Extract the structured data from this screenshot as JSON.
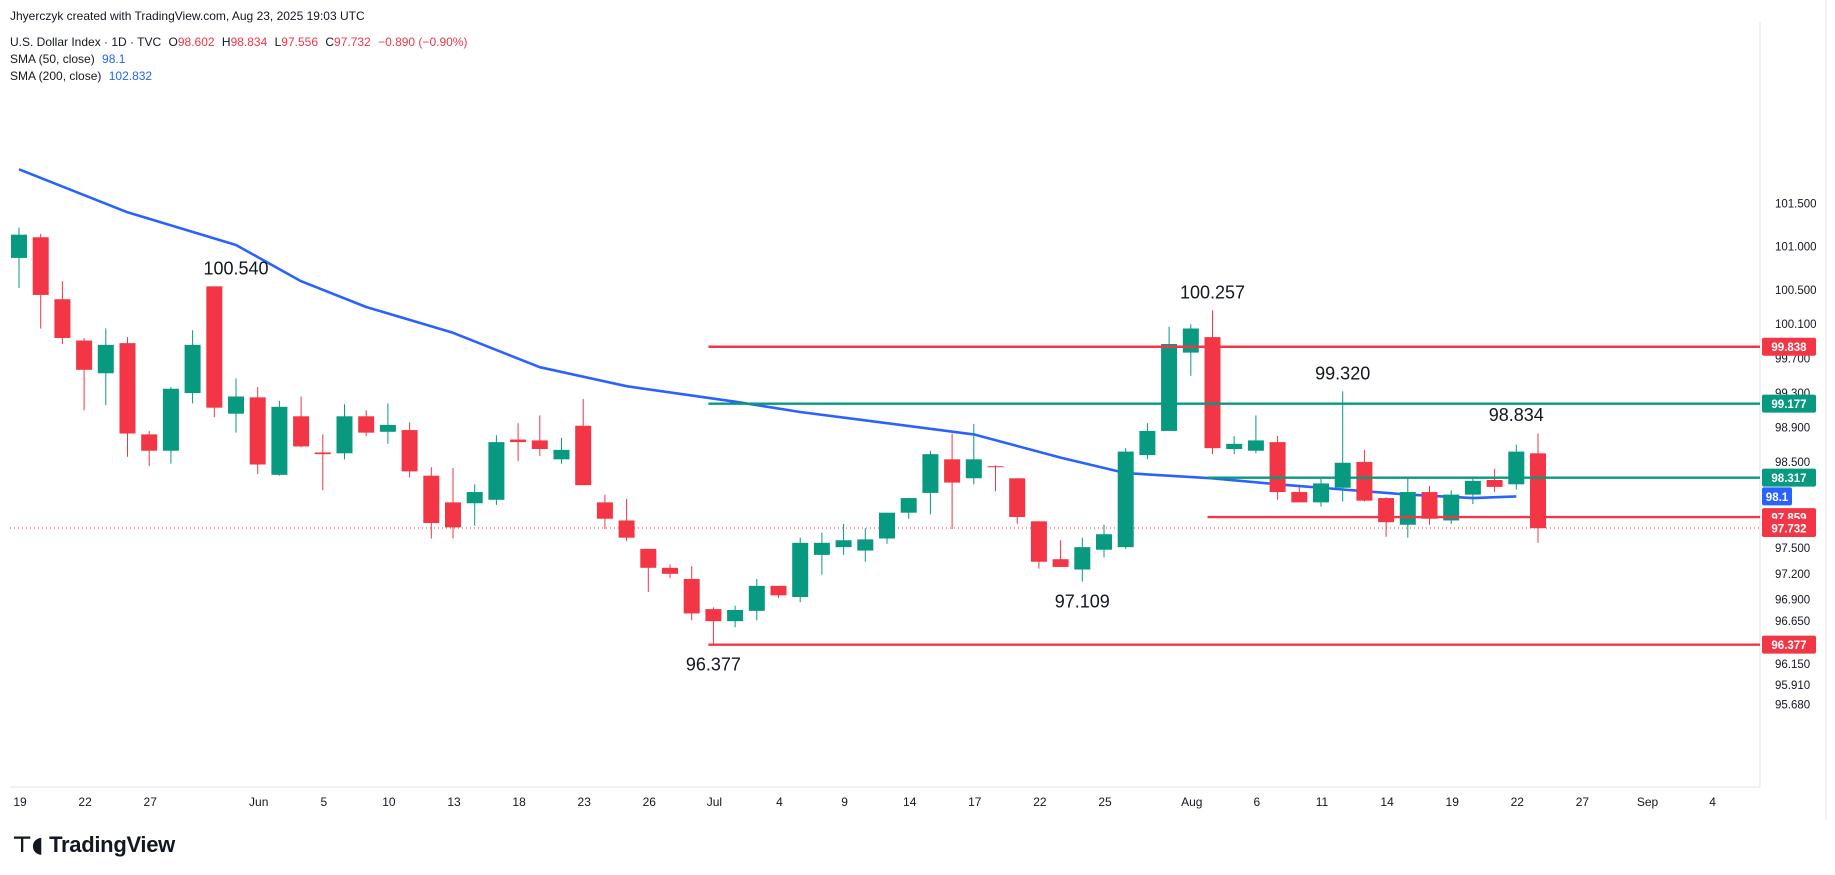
{
  "creator_line": "Jhyerczyk created with TradingView.com, Aug 23, 2025 19:03 UTC",
  "legend": {
    "symbol": "U.S. Dollar Index · 1D · TVC",
    "open_label": "O",
    "open": "98.602",
    "high_label": "H",
    "high": "98.834",
    "low_label": "L",
    "low": "97.556",
    "close_label": "C",
    "close": "97.732",
    "change": "−0.890 (−0.90%)",
    "sma50_label": "SMA (50, close)",
    "sma50_value": "98.1",
    "sma200_label": "SMA (200, close)",
    "sma200_value": "102.832"
  },
  "brand": {
    "name": "TradingView",
    "logo_icon": "tradingview-logo-icon"
  },
  "colors": {
    "up": "#089981",
    "down": "#f23645",
    "sma": "#2962ff",
    "green_level": "#089981",
    "red_level": "#f23645"
  },
  "chart_data": {
    "type": "candlestick",
    "title": "U.S. Dollar Index · 1D · TVC",
    "y_axis": {
      "side": "right",
      "ticks": [
        "101.500",
        "101.000",
        "100.500",
        "100.100",
        "99.700",
        "99.300",
        "98.900",
        "98.500",
        "97.500",
        "97.200",
        "96.900",
        "96.650",
        "96.150",
        "95.910",
        "95.680"
      ]
    },
    "x_axis": {
      "ticks": [
        {
          "i": 0,
          "label": "19"
        },
        {
          "i": 3,
          "label": "22"
        },
        {
          "i": 6,
          "label": "27"
        },
        {
          "i": 11,
          "label": "Jun"
        },
        {
          "i": 14,
          "label": "5"
        },
        {
          "i": 17,
          "label": "10"
        },
        {
          "i": 20,
          "label": "13"
        },
        {
          "i": 23,
          "label": "18"
        },
        {
          "i": 26,
          "label": "23"
        },
        {
          "i": 29,
          "label": "26"
        },
        {
          "i": 32,
          "label": "Jul"
        },
        {
          "i": 35,
          "label": "4"
        },
        {
          "i": 38,
          "label": "9"
        },
        {
          "i": 41,
          "label": "14"
        },
        {
          "i": 44,
          "label": "17"
        },
        {
          "i": 47,
          "label": "22"
        },
        {
          "i": 50,
          "label": "25"
        },
        {
          "i": 54,
          "label": "Aug"
        },
        {
          "i": 57,
          "label": "6"
        },
        {
          "i": 60,
          "label": "11"
        },
        {
          "i": 63,
          "label": "14"
        },
        {
          "i": 66,
          "label": "19"
        },
        {
          "i": 69,
          "label": "22"
        },
        {
          "i": 72,
          "label": "27"
        },
        {
          "i": 75,
          "label": "Sep"
        },
        {
          "i": 78,
          "label": "4"
        }
      ]
    },
    "candles": [
      {
        "o": 100.87,
        "h": 101.22,
        "l": 100.52,
        "c": 101.14
      },
      {
        "o": 101.11,
        "h": 101.15,
        "l": 100.05,
        "c": 100.44
      },
      {
        "o": 100.39,
        "h": 100.6,
        "l": 99.87,
        "c": 99.94
      },
      {
        "o": 99.91,
        "h": 99.94,
        "l": 99.1,
        "c": 99.57
      },
      {
        "o": 99.53,
        "h": 100.05,
        "l": 99.16,
        "c": 99.86
      },
      {
        "o": 99.88,
        "h": 99.95,
        "l": 98.56,
        "c": 98.83
      },
      {
        "o": 98.82,
        "h": 98.86,
        "l": 98.45,
        "c": 98.63
      },
      {
        "o": 98.63,
        "h": 99.37,
        "l": 98.48,
        "c": 99.35
      },
      {
        "o": 99.3,
        "h": 100.03,
        "l": 99.18,
        "c": 99.86
      },
      {
        "o": 100.54,
        "h": 100.54,
        "l": 99.02,
        "c": 99.13
      },
      {
        "o": 99.06,
        "h": 99.47,
        "l": 98.84,
        "c": 99.26
      },
      {
        "o": 99.25,
        "h": 99.37,
        "l": 98.36,
        "c": 98.47
      },
      {
        "o": 98.35,
        "h": 99.21,
        "l": 98.34,
        "c": 99.14
      },
      {
        "o": 99.03,
        "h": 99.26,
        "l": 98.67,
        "c": 98.68
      },
      {
        "o": 98.61,
        "h": 98.82,
        "l": 98.17,
        "c": 98.59
      },
      {
        "o": 98.6,
        "h": 99.17,
        "l": 98.53,
        "c": 99.03
      },
      {
        "o": 99.03,
        "h": 99.1,
        "l": 98.8,
        "c": 98.84
      },
      {
        "o": 98.85,
        "h": 99.18,
        "l": 98.71,
        "c": 98.93
      },
      {
        "o": 98.87,
        "h": 98.96,
        "l": 98.32,
        "c": 98.39
      },
      {
        "o": 98.34,
        "h": 98.44,
        "l": 97.61,
        "c": 97.79
      },
      {
        "o": 98.03,
        "h": 98.43,
        "l": 97.61,
        "c": 97.74
      },
      {
        "o": 98.02,
        "h": 98.24,
        "l": 97.76,
        "c": 98.15
      },
      {
        "o": 98.06,
        "h": 98.81,
        "l": 98.0,
        "c": 98.73
      },
      {
        "o": 98.76,
        "h": 98.95,
        "l": 98.51,
        "c": 98.73
      },
      {
        "o": 98.75,
        "h": 99.04,
        "l": 98.57,
        "c": 98.65
      },
      {
        "o": 98.53,
        "h": 98.78,
        "l": 98.48,
        "c": 98.64
      },
      {
        "o": 98.92,
        "h": 99.23,
        "l": 98.23,
        "c": 98.23
      },
      {
        "o": 98.03,
        "h": 98.12,
        "l": 97.72,
        "c": 97.84
      },
      {
        "o": 97.82,
        "h": 98.07,
        "l": 97.58,
        "c": 97.62
      },
      {
        "o": 97.49,
        "h": 97.49,
        "l": 96.99,
        "c": 97.27
      },
      {
        "o": 97.27,
        "h": 97.31,
        "l": 97.15,
        "c": 97.2
      },
      {
        "o": 97.14,
        "h": 97.29,
        "l": 96.66,
        "c": 96.74
      },
      {
        "o": 96.79,
        "h": 96.81,
        "l": 96.38,
        "c": 96.65
      },
      {
        "o": 96.65,
        "h": 96.83,
        "l": 96.58,
        "c": 96.78
      },
      {
        "o": 96.77,
        "h": 97.14,
        "l": 96.66,
        "c": 97.06
      },
      {
        "o": 97.06,
        "h": 97.06,
        "l": 96.92,
        "c": 96.95
      },
      {
        "o": 96.93,
        "h": 97.62,
        "l": 96.87,
        "c": 97.56
      },
      {
        "o": 97.42,
        "h": 97.68,
        "l": 97.19,
        "c": 97.56
      },
      {
        "o": 97.51,
        "h": 97.78,
        "l": 97.42,
        "c": 97.59
      },
      {
        "o": 97.47,
        "h": 97.73,
        "l": 97.34,
        "c": 97.6
      },
      {
        "o": 97.61,
        "h": 97.91,
        "l": 97.55,
        "c": 97.91
      },
      {
        "o": 97.91,
        "h": 98.08,
        "l": 97.84,
        "c": 98.08
      },
      {
        "o": 98.14,
        "h": 98.63,
        "l": 97.89,
        "c": 98.59
      },
      {
        "o": 98.53,
        "h": 98.83,
        "l": 97.72,
        "c": 98.26
      },
      {
        "o": 98.31,
        "h": 98.94,
        "l": 98.24,
        "c": 98.53
      },
      {
        "o": 98.45,
        "h": 98.46,
        "l": 98.16,
        "c": 98.44
      },
      {
        "o": 98.31,
        "h": 98.31,
        "l": 97.78,
        "c": 97.86
      },
      {
        "o": 97.81,
        "h": 97.81,
        "l": 97.26,
        "c": 97.34
      },
      {
        "o": 97.37,
        "h": 97.59,
        "l": 97.28,
        "c": 97.28
      },
      {
        "o": 97.25,
        "h": 97.62,
        "l": 97.11,
        "c": 97.51
      },
      {
        "o": 97.48,
        "h": 97.77,
        "l": 97.39,
        "c": 97.66
      },
      {
        "o": 97.51,
        "h": 98.66,
        "l": 97.49,
        "c": 98.62
      },
      {
        "o": 98.58,
        "h": 98.95,
        "l": 98.53,
        "c": 98.86
      },
      {
        "o": 98.86,
        "h": 100.07,
        "l": 98.86,
        "c": 99.87
      },
      {
        "o": 99.77,
        "h": 100.1,
        "l": 99.5,
        "c": 100.05
      },
      {
        "o": 99.95,
        "h": 100.26,
        "l": 98.59,
        "c": 98.66
      },
      {
        "o": 98.65,
        "h": 98.8,
        "l": 98.59,
        "c": 98.71
      },
      {
        "o": 98.63,
        "h": 99.04,
        "l": 98.6,
        "c": 98.75
      },
      {
        "o": 98.73,
        "h": 98.8,
        "l": 98.06,
        "c": 98.15
      },
      {
        "o": 98.15,
        "h": 98.21,
        "l": 98.03,
        "c": 98.03
      },
      {
        "o": 98.03,
        "h": 98.33,
        "l": 97.98,
        "c": 98.25
      },
      {
        "o": 98.2,
        "h": 99.32,
        "l": 98.04,
        "c": 98.49
      },
      {
        "o": 98.5,
        "h": 98.64,
        "l": 98.04,
        "c": 98.05
      },
      {
        "o": 98.08,
        "h": 98.09,
        "l": 97.63,
        "c": 97.8
      },
      {
        "o": 97.77,
        "h": 98.33,
        "l": 97.62,
        "c": 98.15
      },
      {
        "o": 98.15,
        "h": 98.22,
        "l": 97.77,
        "c": 97.84
      },
      {
        "o": 97.82,
        "h": 98.17,
        "l": 97.78,
        "c": 98.12
      },
      {
        "o": 98.12,
        "h": 98.31,
        "l": 98.01,
        "c": 98.28
      },
      {
        "o": 98.29,
        "h": 98.42,
        "l": 98.15,
        "c": 98.21
      },
      {
        "o": 98.24,
        "h": 98.7,
        "l": 98.18,
        "c": 98.62
      },
      {
        "o": 98.6,
        "h": 98.83,
        "l": 97.56,
        "c": 97.73
      }
    ],
    "sma50": [
      {
        "i": 0,
        "v": 101.9
      },
      {
        "i": 5,
        "v": 101.4
      },
      {
        "i": 10,
        "v": 101.02
      },
      {
        "i": 13,
        "v": 100.6
      },
      {
        "i": 16,
        "v": 100.3
      },
      {
        "i": 20,
        "v": 100.0
      },
      {
        "i": 24,
        "v": 99.6
      },
      {
        "i": 28,
        "v": 99.38
      },
      {
        "i": 33,
        "v": 99.2
      },
      {
        "i": 36,
        "v": 99.08
      },
      {
        "i": 40,
        "v": 98.95
      },
      {
        "i": 44,
        "v": 98.82
      },
      {
        "i": 48,
        "v": 98.55
      },
      {
        "i": 51,
        "v": 98.37
      },
      {
        "i": 55,
        "v": 98.31
      },
      {
        "i": 58,
        "v": 98.24
      },
      {
        "i": 61,
        "v": 98.18
      },
      {
        "i": 64,
        "v": 98.12
      },
      {
        "i": 67,
        "v": 98.08
      },
      {
        "i": 69,
        "v": 98.1
      }
    ],
    "levels": [
      {
        "value": 99.838,
        "label": "99.838",
        "color": "#f23645",
        "from": 32,
        "to": 79
      },
      {
        "value": 99.177,
        "label": "99.177",
        "color": "#089981",
        "from": 32,
        "to": 79
      },
      {
        "value": 98.317,
        "label": "98.317",
        "color": "#089981",
        "from": 55,
        "to": 79
      },
      {
        "value": 97.859,
        "label": "97.859",
        "color": "#f23645",
        "from": 55,
        "to": 79
      },
      {
        "value": 96.377,
        "label": "96.377",
        "color": "#f23645",
        "from": 32,
        "to": 79
      }
    ],
    "badges": [
      {
        "value": 98.1,
        "label": "98.1",
        "color": "#2962ff"
      },
      {
        "value": 97.732,
        "label": "97.732",
        "color": "#f23645"
      }
    ],
    "annotations": [
      {
        "i": 10,
        "value": 100.54,
        "text": "100.540",
        "pos": "above"
      },
      {
        "i": 55,
        "value": 100.257,
        "text": "100.257",
        "pos": "above"
      },
      {
        "i": 61,
        "value": 99.32,
        "text": "99.320",
        "pos": "above"
      },
      {
        "i": 69,
        "value": 98.834,
        "text": "98.834",
        "pos": "above"
      },
      {
        "i": 32,
        "value": 96.377,
        "text": "96.377",
        "pos": "below"
      },
      {
        "i": 49,
        "value": 97.109,
        "text": "97.109",
        "pos": "below"
      }
    ],
    "last_close": 97.732
  }
}
